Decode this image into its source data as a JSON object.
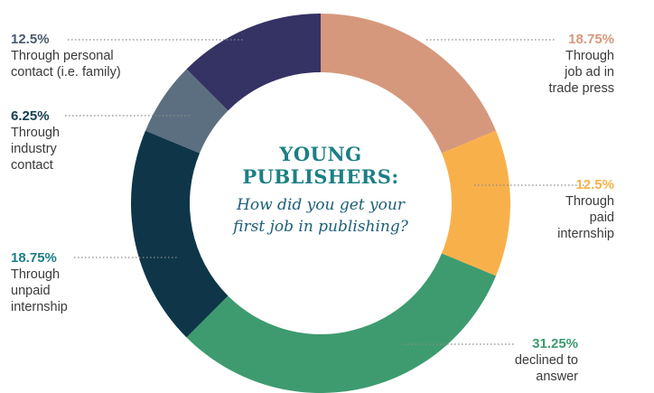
{
  "chart_data": {
    "type": "pie",
    "donut": true,
    "title": "YOUNG PUBLISHERS:",
    "subtitle": "How did you get your first job in publishing?",
    "slices": [
      {
        "label": "Through job ad in trade press",
        "lines": [
          "Through",
          "job ad in",
          "trade press"
        ],
        "value": 18.75,
        "value_label": "18.75%",
        "color": "#d6987c",
        "label_color": "#d6987c"
      },
      {
        "label": "Through paid internship",
        "lines": [
          "Through",
          "paid",
          "internship"
        ],
        "value": 12.5,
        "value_label": "12.5%",
        "color": "#f8b14a",
        "label_color": "#f8b14a"
      },
      {
        "label": "declined to answer",
        "lines": [
          "declined to",
          "answer"
        ],
        "value": 31.25,
        "value_label": "31.25%",
        "color": "#3e9b6f",
        "label_color": "#3e9b6f"
      },
      {
        "label": "Through unpaid internship",
        "lines": [
          "Through",
          "unpaid",
          "internship"
        ],
        "value": 18.75,
        "value_label": "18.75%",
        "color": "#0e3648",
        "label_color": "#1b7e86"
      },
      {
        "label": "Through industry contact",
        "lines": [
          "Through",
          "industry",
          "contact"
        ],
        "value": 6.25,
        "value_label": "6.25%",
        "color": "#5b6f80",
        "label_color": "#163e52"
      },
      {
        "label": "Through personal contact (i.e. family)",
        "lines": [
          "Through personal",
          "contact (i.e. family)"
        ],
        "value": 12.5,
        "value_label": "12.5%",
        "color": "#353264",
        "label_color": "#4a5a6c"
      }
    ]
  }
}
